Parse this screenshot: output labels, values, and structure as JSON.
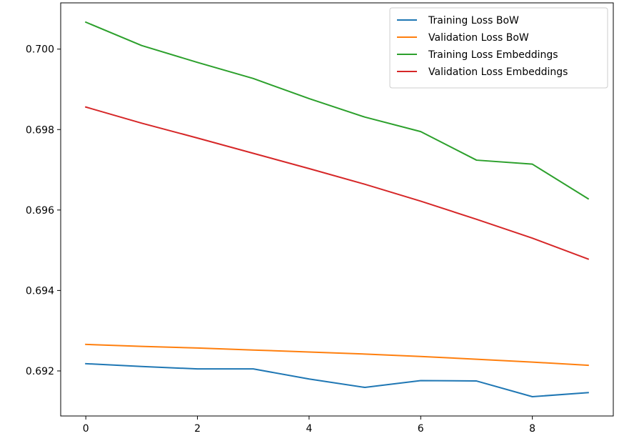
{
  "chart_data": {
    "type": "line",
    "title": "",
    "xlabel": "",
    "ylabel": "",
    "x": [
      0,
      1,
      2,
      3,
      4,
      5,
      6,
      7,
      8,
      9
    ],
    "xlim": [
      -0.45,
      9.45
    ],
    "ylim": [
      0.69088,
      0.70115
    ],
    "xticks": [
      0,
      2,
      4,
      6,
      8
    ],
    "xtick_labels": [
      "0",
      "2",
      "4",
      "6",
      "8"
    ],
    "yticks": [
      0.692,
      0.694,
      0.696,
      0.698,
      0.7
    ],
    "ytick_labels": [
      "0.692",
      "0.694",
      "0.696",
      "0.698",
      "0.700"
    ],
    "grid": false,
    "legend_position": "top-right",
    "series": [
      {
        "name": "Training Loss BoW",
        "color": "#1f77b4",
        "values": [
          0.69218,
          0.69211,
          0.69205,
          0.69205,
          0.6918,
          0.69159,
          0.69176,
          0.69175,
          0.69136,
          0.69146
        ]
      },
      {
        "name": "Validation Loss BoW",
        "color": "#ff7f0e",
        "values": [
          0.69266,
          0.69261,
          0.69257,
          0.69252,
          0.69247,
          0.69242,
          0.69236,
          0.69229,
          0.69222,
          0.69214
        ]
      },
      {
        "name": "Training Loss Embeddings",
        "color": "#2ca02c",
        "values": [
          0.70067,
          0.70009,
          0.69967,
          0.69927,
          0.69877,
          0.69831,
          0.69795,
          0.69724,
          0.69714,
          0.69628
        ]
      },
      {
        "name": "Validation Loss Embeddings",
        "color": "#d62728",
        "values": [
          0.69856,
          0.69816,
          0.69779,
          0.69741,
          0.69703,
          0.69664,
          0.69622,
          0.69577,
          0.6953,
          0.69478
        ]
      }
    ]
  }
}
